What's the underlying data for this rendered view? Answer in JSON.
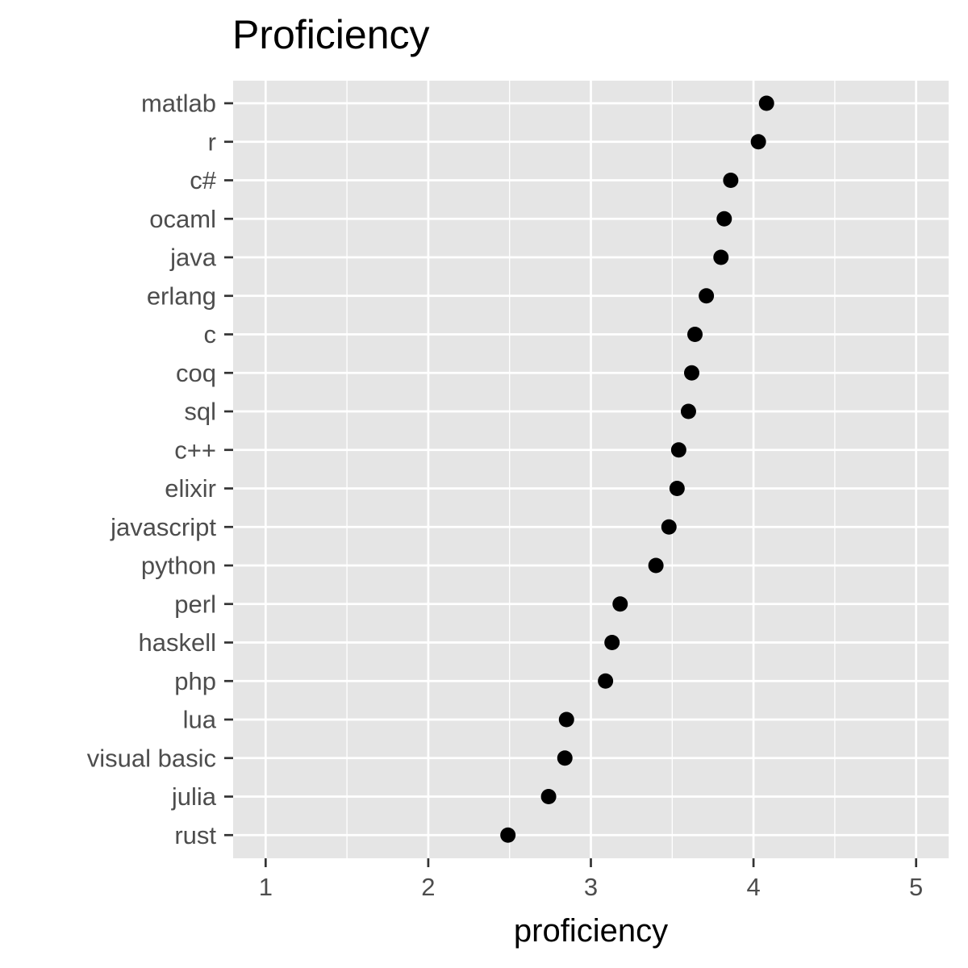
{
  "chart_data": {
    "type": "scatter",
    "title": "Proficiency",
    "xlabel": "proficiency",
    "ylabel": "",
    "xlim": [
      0.8,
      5.2
    ],
    "x_ticks": [
      1,
      2,
      3,
      4,
      5
    ],
    "x_tick_labels": [
      "1",
      "2",
      "3",
      "4",
      "5"
    ],
    "grid": true,
    "categories": [
      "matlab",
      "r",
      "c#",
      "ocaml",
      "java",
      "erlang",
      "c",
      "coq",
      "sql",
      "c++",
      "elixir",
      "javascript",
      "python",
      "perl",
      "haskell",
      "php",
      "lua",
      "visual basic",
      "julia",
      "rust"
    ],
    "values": [
      4.08,
      4.03,
      3.86,
      3.82,
      3.8,
      3.71,
      3.64,
      3.62,
      3.6,
      3.54,
      3.53,
      3.48,
      3.4,
      3.18,
      3.13,
      3.09,
      2.85,
      2.84,
      2.74,
      2.49
    ],
    "colors": {
      "panel": "#e5e5e5",
      "grid": "#ffffff",
      "point": "#000000",
      "tick_text": "#4d4d4d",
      "tick_mark": "#333333"
    }
  }
}
